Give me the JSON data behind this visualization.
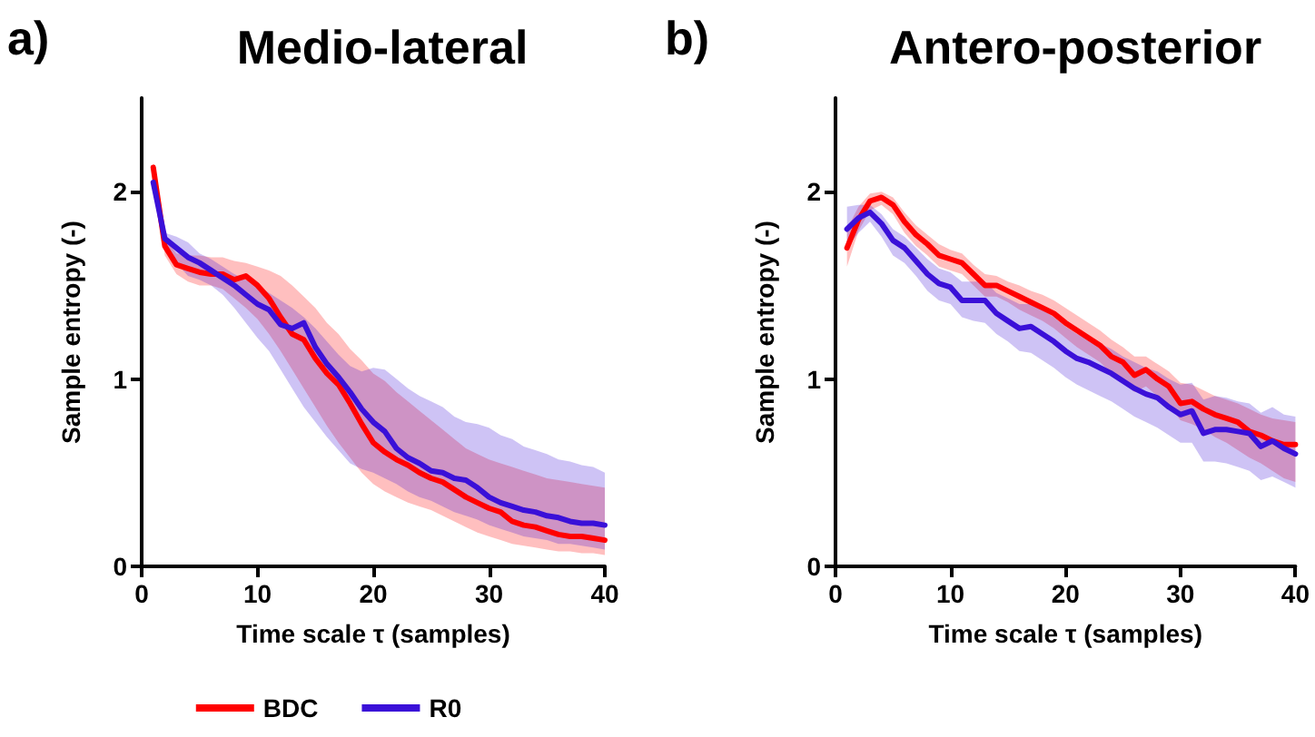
{
  "chart_data": [
    {
      "type": "line",
      "title": "Medio-lateral",
      "xlabel": "Time scale τ (samples)",
      "ylabel": "Sample entropy (-)",
      "annotations": [
        "a)"
      ],
      "x": [
        1,
        2,
        3,
        4,
        5,
        6,
        7,
        8,
        9,
        10,
        11,
        12,
        13,
        14,
        15,
        16,
        17,
        18,
        19,
        20,
        21,
        22,
        23,
        24,
        25,
        26,
        27,
        28,
        29,
        30,
        31,
        32,
        33,
        34,
        35,
        36,
        37,
        38,
        39,
        40
      ],
      "series": [
        {
          "name": "BDC",
          "color": "#ff0000",
          "values": [
            2.13,
            1.71,
            1.61,
            1.59,
            1.57,
            1.56,
            1.56,
            1.53,
            1.55,
            1.5,
            1.43,
            1.33,
            1.24,
            1.21,
            1.11,
            1.03,
            0.97,
            0.87,
            0.76,
            0.66,
            0.61,
            0.57,
            0.54,
            0.5,
            0.47,
            0.45,
            0.41,
            0.37,
            0.34,
            0.31,
            0.29,
            0.24,
            0.22,
            0.21,
            0.19,
            0.17,
            0.16,
            0.16,
            0.15,
            0.14
          ],
          "upper": [
            2.13,
            1.75,
            1.67,
            1.66,
            1.66,
            1.65,
            1.65,
            1.63,
            1.62,
            1.6,
            1.58,
            1.55,
            1.5,
            1.44,
            1.38,
            1.3,
            1.24,
            1.16,
            1.1,
            1.03,
            0.99,
            0.93,
            0.88,
            0.83,
            0.78,
            0.73,
            0.68,
            0.63,
            0.6,
            0.57,
            0.55,
            0.53,
            0.51,
            0.49,
            0.47,
            0.46,
            0.45,
            0.44,
            0.43,
            0.42
          ],
          "lower": [
            2.13,
            1.66,
            1.56,
            1.52,
            1.5,
            1.5,
            1.48,
            1.43,
            1.38,
            1.32,
            1.24,
            1.15,
            1.05,
            0.95,
            0.85,
            0.75,
            0.66,
            0.58,
            0.5,
            0.44,
            0.4,
            0.37,
            0.34,
            0.32,
            0.3,
            0.27,
            0.24,
            0.21,
            0.18,
            0.16,
            0.14,
            0.12,
            0.11,
            0.1,
            0.09,
            0.08,
            0.08,
            0.07,
            0.07,
            0.06
          ]
        },
        {
          "name": "R0",
          "color": "#3a10d8",
          "values": [
            2.05,
            1.75,
            1.7,
            1.65,
            1.62,
            1.58,
            1.54,
            1.5,
            1.45,
            1.4,
            1.37,
            1.29,
            1.27,
            1.3,
            1.17,
            1.08,
            1.01,
            0.93,
            0.84,
            0.77,
            0.72,
            0.63,
            0.58,
            0.55,
            0.51,
            0.5,
            0.47,
            0.46,
            0.42,
            0.37,
            0.34,
            0.32,
            0.3,
            0.29,
            0.27,
            0.26,
            0.24,
            0.23,
            0.23,
            0.22
          ],
          "upper": [
            2.05,
            1.78,
            1.76,
            1.73,
            1.67,
            1.64,
            1.6,
            1.56,
            1.53,
            1.5,
            1.46,
            1.42,
            1.38,
            1.33,
            1.27,
            1.2,
            1.13,
            1.07,
            1.04,
            1.06,
            1.05,
            1.0,
            0.95,
            0.91,
            0.88,
            0.85,
            0.8,
            0.77,
            0.76,
            0.74,
            0.7,
            0.68,
            0.64,
            0.62,
            0.6,
            0.57,
            0.56,
            0.54,
            0.53,
            0.5
          ],
          "lower": [
            2.05,
            1.72,
            1.62,
            1.55,
            1.53,
            1.5,
            1.45,
            1.38,
            1.3,
            1.22,
            1.15,
            1.05,
            0.95,
            0.85,
            0.77,
            0.69,
            0.62,
            0.55,
            0.52,
            0.5,
            0.47,
            0.44,
            0.4,
            0.37,
            0.35,
            0.32,
            0.29,
            0.27,
            0.25,
            0.22,
            0.2,
            0.18,
            0.16,
            0.15,
            0.14,
            0.12,
            0.12,
            0.11,
            0.1,
            0.09
          ]
        }
      ],
      "xlim": [
        0,
        40
      ],
      "xticks": [
        0,
        10,
        20,
        30,
        40
      ],
      "ylim": [
        0,
        2.5
      ],
      "yticks": [
        0,
        1,
        2
      ],
      "grid": false,
      "legend": "bottom",
      "marker": "none",
      "line_style": "solid"
    },
    {
      "type": "line",
      "title": "Antero-posterior",
      "xlabel": "Time scale τ (samples)",
      "ylabel": "Sample entropy (-)",
      "annotations": [
        "b)"
      ],
      "x": [
        1,
        2,
        3,
        4,
        5,
        6,
        7,
        8,
        9,
        10,
        11,
        12,
        13,
        14,
        15,
        16,
        17,
        18,
        19,
        20,
        21,
        22,
        23,
        24,
        25,
        26,
        27,
        28,
        29,
        30,
        31,
        32,
        33,
        34,
        35,
        36,
        37,
        38,
        39,
        40
      ],
      "series": [
        {
          "color": "#ff0000",
          "values": [
            1.7,
            1.85,
            1.95,
            1.97,
            1.93,
            1.84,
            1.77,
            1.72,
            1.66,
            1.64,
            1.62,
            1.56,
            1.5,
            1.5,
            1.47,
            1.44,
            1.41,
            1.38,
            1.35,
            1.3,
            1.26,
            1.22,
            1.18,
            1.12,
            1.09,
            1.02,
            1.05,
            1.0,
            0.96,
            0.87,
            0.88,
            0.84,
            0.81,
            0.79,
            0.77,
            0.72,
            0.7,
            0.67,
            0.65,
            0.65
          ],
          "upper": [
            1.8,
            1.92,
            1.99,
            2.0,
            1.97,
            1.89,
            1.82,
            1.77,
            1.72,
            1.69,
            1.67,
            1.61,
            1.56,
            1.55,
            1.52,
            1.5,
            1.47,
            1.45,
            1.42,
            1.38,
            1.34,
            1.3,
            1.26,
            1.21,
            1.17,
            1.12,
            1.12,
            1.08,
            1.04,
            0.98,
            0.97,
            0.94,
            0.91,
            0.89,
            0.87,
            0.84,
            0.81,
            0.79,
            0.78,
            0.77
          ],
          "lower": [
            1.6,
            1.79,
            1.9,
            1.93,
            1.88,
            1.78,
            1.71,
            1.66,
            1.6,
            1.58,
            1.56,
            1.5,
            1.44,
            1.44,
            1.41,
            1.37,
            1.34,
            1.31,
            1.27,
            1.22,
            1.17,
            1.13,
            1.09,
            1.03,
            0.99,
            0.93,
            0.96,
            0.91,
            0.86,
            0.78,
            0.76,
            0.73,
            0.69,
            0.66,
            0.62,
            0.58,
            0.55,
            0.51,
            0.47,
            0.45
          ]
        },
        {
          "color": "#3a10d8",
          "values": [
            1.8,
            1.86,
            1.89,
            1.83,
            1.74,
            1.7,
            1.63,
            1.56,
            1.51,
            1.49,
            1.42,
            1.42,
            1.42,
            1.35,
            1.31,
            1.27,
            1.28,
            1.24,
            1.2,
            1.15,
            1.11,
            1.09,
            1.06,
            1.03,
            0.99,
            0.95,
            0.92,
            0.9,
            0.85,
            0.81,
            0.83,
            0.71,
            0.73,
            0.73,
            0.72,
            0.71,
            0.64,
            0.67,
            0.63,
            0.6
          ],
          "upper": [
            1.92,
            1.93,
            1.93,
            1.88,
            1.8,
            1.76,
            1.7,
            1.64,
            1.59,
            1.57,
            1.52,
            1.52,
            1.52,
            1.46,
            1.43,
            1.4,
            1.4,
            1.37,
            1.33,
            1.28,
            1.24,
            1.22,
            1.19,
            1.16,
            1.12,
            1.09,
            1.06,
            1.04,
            1.0,
            0.97,
            0.98,
            0.89,
            0.91,
            0.9,
            0.88,
            0.87,
            0.82,
            0.85,
            0.81,
            0.8
          ],
          "lower": [
            1.7,
            1.78,
            1.84,
            1.76,
            1.66,
            1.62,
            1.55,
            1.47,
            1.42,
            1.4,
            1.33,
            1.31,
            1.3,
            1.24,
            1.2,
            1.15,
            1.14,
            1.1,
            1.06,
            1.01,
            0.97,
            0.94,
            0.91,
            0.88,
            0.84,
            0.8,
            0.77,
            0.74,
            0.7,
            0.66,
            0.66,
            0.56,
            0.56,
            0.55,
            0.53,
            0.51,
            0.46,
            0.48,
            0.45,
            0.42
          ]
        }
      ],
      "xlim": [
        0,
        40
      ],
      "xticks": [
        0,
        10,
        20,
        30,
        40
      ],
      "ylim": [
        0,
        2.5
      ],
      "yticks": [
        0,
        1,
        2
      ],
      "grid": false,
      "marker": "none",
      "line_style": "solid"
    }
  ]
}
